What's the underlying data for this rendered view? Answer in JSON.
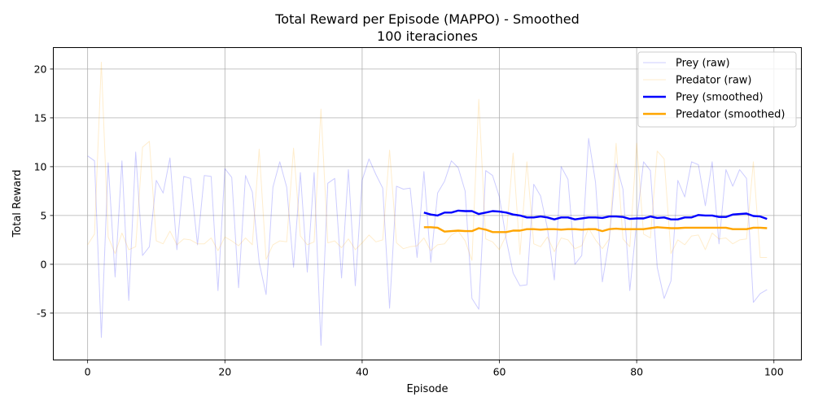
{
  "chart_data": {
    "type": "line",
    "title": "Total Reward per Episode (MAPPO) - Smoothed",
    "subtitle": "100 iteraciones",
    "xlabel": "Episode",
    "ylabel": "Total Reward",
    "xlim": [
      -5,
      104
    ],
    "ylim": [
      -9.8,
      22.2
    ],
    "xticks": [
      0,
      20,
      40,
      60,
      80,
      100
    ],
    "yticks": [
      -5,
      0,
      5,
      10,
      15,
      20
    ],
    "grid": true,
    "legend_position": "top-right",
    "series": [
      {
        "name": "Prey (raw)",
        "color": "#0000ff",
        "opacity": 0.2,
        "width": 1,
        "x_start": 0,
        "values": [
          11.1,
          10.6,
          -7.5,
          10.4,
          -1.3,
          10.6,
          -3.7,
          11.5,
          0.9,
          1.8,
          8.6,
          7.3,
          10.9,
          1.5,
          9.0,
          8.8,
          2.0,
          9.1,
          9.0,
          -2.7,
          9.8,
          8.9,
          -2.4,
          9.1,
          7.4,
          0.2,
          -3.1,
          7.9,
          10.5,
          7.9,
          -0.3,
          9.4,
          -0.8,
          9.4,
          -8.3,
          8.3,
          8.8,
          -1.4,
          9.7,
          -2.2,
          8.6,
          10.8,
          9.2,
          7.8,
          -4.5,
          8.0,
          7.7,
          7.8,
          0.7,
          9.5,
          0.2,
          7.3,
          8.5,
          10.6,
          9.9,
          7.5,
          -3.5,
          -4.6,
          9.6,
          9.1,
          6.9,
          2.5,
          -0.9,
          -2.2,
          -2.1,
          8.2,
          7.0,
          3.7,
          -1.6,
          10.0,
          8.7,
          0.0,
          0.9,
          12.9,
          8.4,
          -1.8,
          2.5,
          10.3,
          7.7,
          -2.7,
          4.4,
          10.5,
          9.6,
          -0.3,
          -3.5,
          -1.7,
          8.6,
          6.9,
          10.5,
          10.2,
          6.0,
          10.5,
          2.1,
          9.7,
          8.0,
          9.7,
          8.8,
          -3.9,
          -3.0,
          -2.6
        ]
      },
      {
        "name": "Predator (raw)",
        "color": "#ffa500",
        "opacity": 0.2,
        "width": 1,
        "x_start": 0,
        "values": [
          2.0,
          3.1,
          20.7,
          2.8,
          1.1,
          3.2,
          1.5,
          1.8,
          12.0,
          12.6,
          2.4,
          2.1,
          3.4,
          2.0,
          2.6,
          2.5,
          2.1,
          2.1,
          2.7,
          1.4,
          2.8,
          2.4,
          1.9,
          2.7,
          2.0,
          11.8,
          0.5,
          2.0,
          2.4,
          2.3,
          11.9,
          2.9,
          2.0,
          2.3,
          15.9,
          2.2,
          2.4,
          1.7,
          2.6,
          1.5,
          2.2,
          3.0,
          2.3,
          2.5,
          11.7,
          2.2,
          1.6,
          1.8,
          1.9,
          2.7,
          1.4,
          2.0,
          2.1,
          3.0,
          3.4,
          2.4,
          0.4,
          16.9,
          2.6,
          2.3,
          1.5,
          3.0,
          11.4,
          1.0,
          10.5,
          2.1,
          1.8,
          2.8,
          1.3,
          2.7,
          2.5,
          1.6,
          1.9,
          3.7,
          2.5,
          1.6,
          2.6,
          12.4,
          2.6,
          1.8,
          12.4,
          3.1,
          2.7,
          11.6,
          10.8,
          1.1,
          2.5,
          2.0,
          2.9,
          3.0,
          1.5,
          3.2,
          2.6,
          2.7,
          2.1,
          2.5,
          2.6,
          10.5,
          0.7,
          0.7
        ]
      },
      {
        "name": "Prey (smoothed)",
        "color": "#0000ff",
        "opacity": 1,
        "width": 2.4,
        "x_start": 49,
        "values": [
          5.3,
          5.1,
          5.0,
          5.3,
          5.3,
          5.5,
          5.45,
          5.45,
          5.15,
          5.3,
          5.45,
          5.4,
          5.3,
          5.1,
          5.0,
          4.8,
          4.8,
          4.9,
          4.8,
          4.6,
          4.8,
          4.8,
          4.6,
          4.7,
          4.8,
          4.8,
          4.75,
          4.9,
          4.9,
          4.85,
          4.65,
          4.7,
          4.7,
          4.9,
          4.75,
          4.8,
          4.6,
          4.6,
          4.8,
          4.8,
          5.05,
          5.0,
          5.0,
          4.85,
          4.85,
          5.1,
          5.15,
          5.2,
          4.95,
          4.9,
          4.65
        ]
      },
      {
        "name": "Predator (smoothed)",
        "color": "#ffa500",
        "opacity": 1,
        "width": 2.4,
        "x_start": 49,
        "values": [
          3.8,
          3.8,
          3.75,
          3.35,
          3.4,
          3.45,
          3.4,
          3.4,
          3.7,
          3.55,
          3.3,
          3.3,
          3.3,
          3.45,
          3.45,
          3.6,
          3.6,
          3.55,
          3.6,
          3.6,
          3.55,
          3.6,
          3.6,
          3.55,
          3.6,
          3.6,
          3.4,
          3.6,
          3.65,
          3.6,
          3.6,
          3.6,
          3.6,
          3.7,
          3.8,
          3.75,
          3.7,
          3.7,
          3.75,
          3.75,
          3.75,
          3.75,
          3.75,
          3.75,
          3.75,
          3.6,
          3.6,
          3.6,
          3.75,
          3.75,
          3.7
        ]
      }
    ]
  }
}
